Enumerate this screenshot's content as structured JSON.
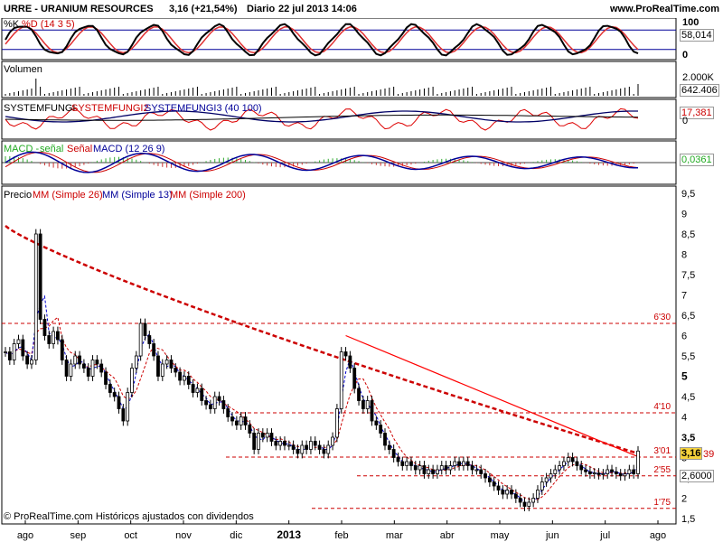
{
  "header": {
    "symbol": "URRE - URANIUM RESOURCES",
    "change": "3,16 (+21,54%)",
    "frequency": "Diario",
    "datetime": "22 jul 2013 14:06",
    "brand": "www.ProRealTime.com"
  },
  "panels": {
    "stoch": {
      "label_k": "%K",
      "label_d": "%D (14 3 5)",
      "axis": [
        "100",
        "58,014",
        "0"
      ],
      "value_box": "58,014"
    },
    "volume": {
      "label": "Volumen",
      "axis": [
        "2.000K"
      ],
      "value_box": "642.406"
    },
    "system": {
      "label1": "SYSTEMFUNGI",
      "label2": "SYSTEMFUNGI2",
      "label3": "SYSTEMFUNGI3 (40 100)",
      "axis": [
        "17,381",
        "0"
      ]
    },
    "macd": {
      "label1": "MACD -",
      "label2": "señal",
      "label3": "Señal",
      "label4": "MACD (12 26 9)",
      "value_box": "0,0361"
    },
    "price": {
      "label_price": "Precio",
      "label_mm26": "MM (Simple 26)",
      "label_mm13": "MM (Simple 13)",
      "label_mm200": "MM (Simple 200)",
      "value_box": "3,16",
      "value_box_tail": "39",
      "value_box2": "2,6000"
    }
  },
  "footer": "© ProRealTime.com Históricos ajustados con dividendos",
  "colors": {
    "up": "#ffffff",
    "down": "#000000",
    "mm26": "#cc0000",
    "mm13": "#0000cc",
    "mm200": "#cc0000",
    "trend": "#ff0000",
    "stoch_k": "#000000",
    "stoch_d": "#e03030",
    "panel_bg": "#ffffff",
    "grid": "#cc0000"
  },
  "chart_data": {
    "type": "candlestick",
    "title": "URRE - URANIUM RESOURCES",
    "ylabel": "Precio",
    "ylim": [
      1.5,
      9.5
    ],
    "yticks": [
      "9,5",
      "9",
      "8,5",
      "8",
      "7,5",
      "7",
      "6,5",
      "6",
      "5,5",
      "5",
      "4,5",
      "4",
      "3,5",
      "3",
      "2,5",
      "2",
      "1,5"
    ],
    "xticks": [
      "ago",
      "sep",
      "oct",
      "nov",
      "dic",
      "2013",
      "feb",
      "mar",
      "abr",
      "may",
      "jun",
      "jul",
      "ago"
    ],
    "levels": [
      {
        "label": "6'30",
        "value": 6.3
      },
      {
        "label": "4'10",
        "value": 4.1
      },
      {
        "label": "3'01",
        "value": 3.01
      },
      {
        "label": "2'55",
        "value": 2.55
      },
      {
        "label": "1'75",
        "value": 1.75
      }
    ],
    "closes": [
      5.6,
      5.4,
      5.8,
      5.9,
      5.5,
      5.3,
      5.4,
      8.5,
      6.4,
      6.0,
      5.8,
      6.1,
      5.9,
      5.4,
      5.0,
      5.3,
      5.5,
      5.3,
      5.2,
      5.0,
      5.4,
      5.3,
      5.1,
      4.8,
      4.6,
      4.5,
      4.2,
      3.9,
      4.6,
      5.2,
      5.5,
      6.3,
      6.0,
      5.8,
      5.5,
      5.0,
      5.3,
      5.4,
      5.2,
      5.1,
      4.9,
      5.0,
      4.8,
      4.6,
      4.7,
      4.4,
      4.3,
      4.2,
      4.5,
      4.4,
      4.2,
      4.0,
      3.9,
      3.8,
      4.0,
      3.8,
      3.6,
      3.2,
      3.6,
      3.5,
      3.6,
      3.4,
      3.3,
      3.4,
      3.3,
      3.3,
      3.2,
      3.1,
      3.3,
      3.2,
      3.4,
      3.3,
      3.2,
      3.1,
      3.3,
      3.5,
      4.2,
      5.6,
      5.5,
      5.2,
      4.7,
      4.4,
      4.2,
      4.4,
      3.9,
      3.8,
      3.6,
      3.3,
      3.2,
      3.0,
      2.9,
      2.8,
      2.9,
      2.8,
      2.7,
      2.8,
      2.6,
      2.7,
      2.6,
      2.7,
      2.8,
      2.7,
      2.8,
      2.9,
      2.8,
      2.9,
      2.8,
      2.7,
      2.7,
      2.6,
      2.5,
      2.4,
      2.3,
      2.2,
      2.1,
      2.2,
      2.1,
      2.0,
      1.9,
      1.8,
      1.9,
      2.0,
      2.2,
      2.4,
      2.5,
      2.6,
      2.7,
      2.8,
      2.9,
      3.0,
      2.9,
      2.8,
      2.7,
      2.65,
      2.6,
      2.62,
      2.58,
      2.6,
      2.7,
      2.65,
      2.6,
      2.55,
      2.6,
      2.7,
      2.6,
      3.16
    ],
    "trendline": {
      "from": 6.0,
      "to": 3.16
    }
  }
}
